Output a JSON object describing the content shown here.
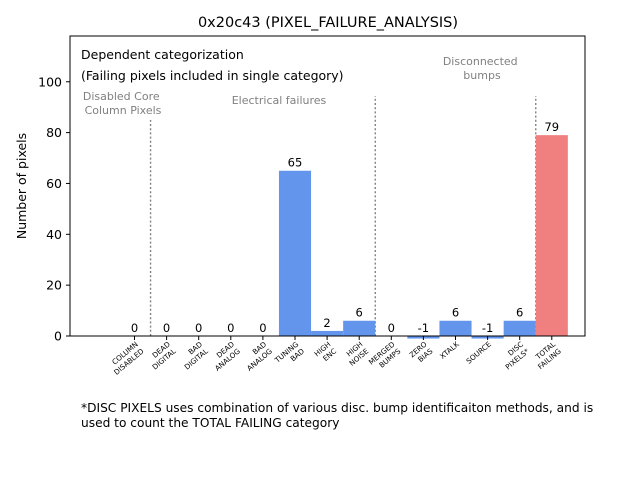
{
  "chart_data": {
    "type": "bar",
    "title": "0x20c43 (PIXEL_FAILURE_ANALYSIS)",
    "xlabel": "",
    "ylabel": "Number of pixels",
    "ylim": [
      0,
      118
    ],
    "yticks": [
      0,
      20,
      40,
      60,
      80,
      100
    ],
    "categories": [
      [
        "COLUMN",
        "DISABLED"
      ],
      [
        "DEAD",
        "DIGITAL"
      ],
      [
        "BAD",
        "DIGITAL"
      ],
      [
        "DEAD",
        "ANALOG"
      ],
      [
        "BAD",
        "ANALOG"
      ],
      [
        "TUNING",
        "BAD"
      ],
      [
        "HIGH",
        "ENC"
      ],
      [
        "HIGH",
        "NOISE"
      ],
      [
        "MERGED",
        "BUMPS"
      ],
      [
        "ZERO",
        "BIAS"
      ],
      [
        "XTALK"
      ],
      [
        "SOURCE"
      ],
      [
        "DISC",
        "PIXELS*"
      ],
      [
        "TOTAL",
        "FAILING"
      ]
    ],
    "values": [
      0,
      0,
      0,
      0,
      0,
      65,
      2,
      6,
      0,
      -1,
      6,
      -1,
      6,
      79
    ],
    "value_labels": [
      "0",
      "0",
      "0",
      "0",
      "0",
      "65",
      "2",
      "6",
      "0",
      "-1",
      "6",
      "-1",
      "6",
      "79"
    ],
    "bar_colors": [
      "#6495ed",
      "#6495ed",
      "#6495ed",
      "#6495ed",
      "#6495ed",
      "#6495ed",
      "#6495ed",
      "#6495ed",
      "#6495ed",
      "#6495ed",
      "#6495ed",
      "#6495ed",
      "#6495ed",
      "#f08080"
    ],
    "separator_color": "#808080",
    "annotations": {
      "heading": "Dependent categorization",
      "subheading": "(Failing pixels included in single category)",
      "disabled_core": [
        "Disabled Core",
        "Column Pixels"
      ],
      "electrical": "Electrical failures",
      "disconnected": [
        "Disconnected",
        "bumps"
      ]
    }
  },
  "footnote": "*DISC PIXELS uses combination of various disc. bump identificaiton methods, and is used to count the TOTAL FAILING category"
}
